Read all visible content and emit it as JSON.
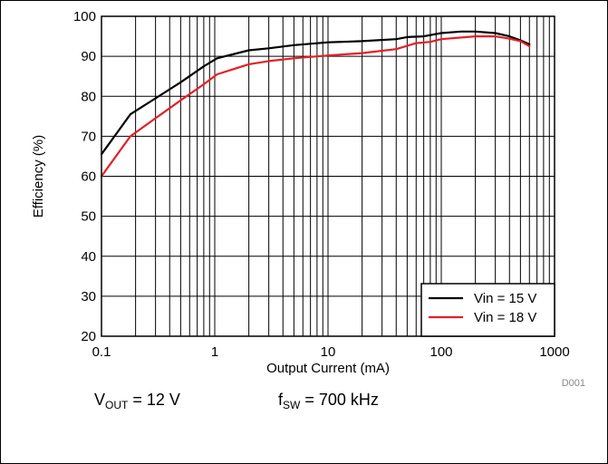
{
  "chart_data": {
    "type": "line",
    "xlabel": "Output Current (mA)",
    "ylabel": "Efficiency (%)",
    "xscale": "log",
    "xlim": [
      0.1,
      1000
    ],
    "ylim": [
      20,
      100
    ],
    "xticks": [
      0.1,
      1,
      10,
      100,
      1000
    ],
    "xtick_labels": [
      "0.1",
      "1",
      "10",
      "100",
      "1000"
    ],
    "yticks": [
      20,
      30,
      40,
      50,
      60,
      70,
      80,
      90,
      100
    ],
    "grid": true,
    "legend_position": "bottom-right",
    "series": [
      {
        "name": "Vin = 15 V",
        "color": "#000000",
        "x": [
          0.1,
          0.18,
          0.3,
          0.5,
          0.8,
          1.05,
          2,
          3,
          5,
          10,
          20,
          40,
          50,
          70,
          100,
          150,
          200,
          300,
          400,
          500,
          600
        ],
        "y": [
          65.5,
          75.5,
          79.5,
          83.5,
          87.5,
          89.5,
          91.5,
          92,
          92.8,
          93.5,
          93.8,
          94.3,
          94.8,
          95,
          95.8,
          96.2,
          96.2,
          95.8,
          95,
          94,
          93
        ]
      },
      {
        "name": "Vin = 18 V",
        "color": "#e41f26",
        "x": [
          0.1,
          0.18,
          0.3,
          0.5,
          0.8,
          1.05,
          2,
          3,
          5,
          10,
          20,
          40,
          60,
          80,
          100,
          150,
          200,
          300,
          400,
          500,
          600
        ],
        "y": [
          60,
          70,
          74.5,
          79,
          83,
          85.5,
          88,
          88.8,
          89.5,
          90.2,
          90.8,
          91.8,
          93.3,
          93.6,
          94.3,
          94.7,
          95,
          95,
          94.4,
          93.8,
          92.5
        ]
      }
    ]
  },
  "chart_id": "D001",
  "conditions": {
    "vout_main": "V",
    "vout_sub": "OUT",
    "vout_rest": " = 12 V",
    "fsw_main": "f",
    "fsw_sub": "SW",
    "fsw_rest": " = 700 kHz"
  }
}
